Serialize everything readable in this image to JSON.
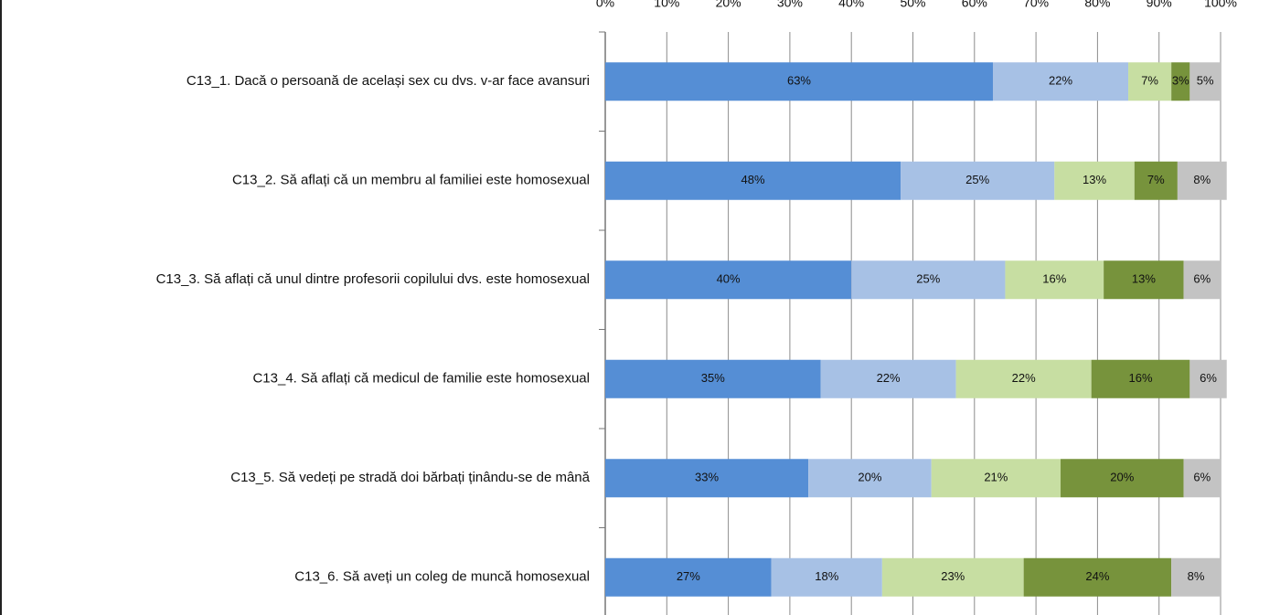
{
  "chart_data": {
    "type": "stacked-barh",
    "categories": [
      "C13_1. Dacă o persoană de același sex cu dvs. v-ar face avansuri",
      "C13_2. Să aflați că un membru al familiei este homosexual",
      "C13_3. Să aflați că unul dintre profesorii copilului dvs. este homosexual",
      "C13_4. Să aflați că medicul de familie este homosexual",
      "C13_5. Să vedeți pe stradă doi bărbați ținându-se de mână",
      "C13_6. Să aveți un coleg de muncă homosexual"
    ],
    "series": [
      {
        "color": "#558ed5",
        "values": [
          63,
          48,
          40,
          35,
          33,
          27
        ],
        "value_labels": [
          "63%",
          "48%",
          "40%",
          "35%",
          "33%",
          "27%"
        ]
      },
      {
        "color": "#a7c1e5",
        "values": [
          22,
          25,
          25,
          22,
          20,
          18
        ],
        "value_labels": [
          "22%",
          "25%",
          "25%",
          "22%",
          "20%",
          "18%"
        ]
      },
      {
        "color": "#c7dea2",
        "values": [
          7,
          13,
          16,
          22,
          21,
          23
        ],
        "value_labels": [
          "7%",
          "13%",
          "16%",
          "22%",
          "21%",
          "23%"
        ]
      },
      {
        "color": "#77933c",
        "values": [
          3,
          7,
          13,
          16,
          20,
          24
        ],
        "value_labels": [
          "3%",
          "7%",
          "13%",
          "16%",
          "20%",
          "24%"
        ]
      },
      {
        "color": "#c3c3c3",
        "values": [
          5,
          8,
          6,
          6,
          6,
          8
        ],
        "value_labels": [
          "5%",
          "8%",
          "6%",
          "6%",
          "6%",
          "8%"
        ]
      }
    ],
    "xlim": [
      0,
      100
    ],
    "xticks": [
      {
        "value": 0,
        "label": "0%"
      },
      {
        "value": 10,
        "label": "10%"
      },
      {
        "value": 20,
        "label": "20%"
      },
      {
        "value": 30,
        "label": "30%"
      },
      {
        "value": 40,
        "label": "40%"
      },
      {
        "value": 50,
        "label": "50%"
      },
      {
        "value": 60,
        "label": "60%"
      },
      {
        "value": 70,
        "label": "70%"
      },
      {
        "value": 80,
        "label": "80%"
      },
      {
        "value": 90,
        "label": "90%"
      },
      {
        "value": 100,
        "label": "100%"
      }
    ],
    "grid": true
  }
}
